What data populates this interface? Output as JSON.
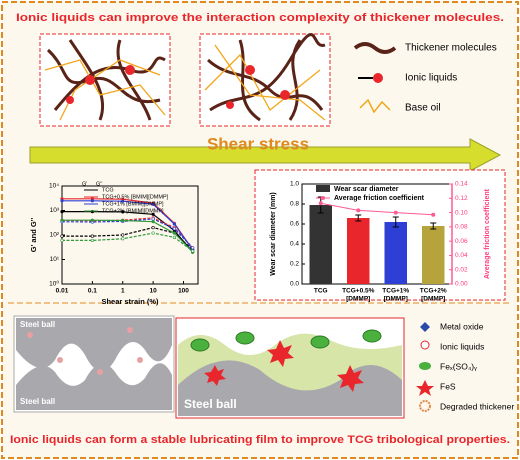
{
  "top_panel": {
    "title": "Ionic liquids can improve the interaction complexity of thickener molecules.",
    "legend": [
      "Thickener molecules",
      "Ionic liquids",
      "Base oil"
    ],
    "arrow_label": "Shear stress"
  },
  "chart_data": [
    {
      "type": "line",
      "x_label": "Shear strain (%)",
      "y_label": "G' and G''",
      "legend_header": [
        "G'",
        "G''"
      ],
      "x": [
        0.01,
        0.1,
        1,
        10,
        50,
        200
      ],
      "xlim": [
        0.01,
        300
      ],
      "xticks": [
        0.01,
        0.1,
        1,
        10,
        100
      ],
      "xlog": true,
      "ylim": [
        1,
        10000
      ],
      "yticks": [
        {
          "value": 1,
          "label": "10⁰"
        },
        {
          "value": 10,
          "label": "10¹"
        },
        {
          "value": 100,
          "label": "10²"
        },
        {
          "value": 1000,
          "label": "10³"
        },
        {
          "value": 10000,
          "label": "10⁴"
        }
      ],
      "ylog": true,
      "series": [
        {
          "name": "TCG",
          "color": "#000000",
          "values": [
            900,
            900,
            880,
            700,
            150,
            20
          ],
          "loss_values": [
            90,
            90,
            100,
            200,
            120,
            25
          ]
        },
        {
          "name": "TCG+0.5% [BMIM][DMMP]",
          "color": "#e8262b",
          "values": [
            3000,
            3000,
            2900,
            2000,
            300,
            25
          ],
          "loss_values": [
            400,
            380,
            400,
            500,
            200,
            30
          ]
        },
        {
          "name": "TCG+1% [BMIM][DMMP]",
          "color": "#2e3fd6",
          "values": [
            2500,
            2500,
            2400,
            1800,
            280,
            25
          ],
          "loss_values": [
            350,
            340,
            360,
            450,
            180,
            30
          ]
        },
        {
          "name": "TCG+2% [BMIM][DMMP]",
          "color": "#2f9a3a",
          "values": [
            400,
            400,
            390,
            350,
            120,
            20
          ],
          "loss_values": [
            60,
            60,
            70,
            120,
            80,
            22
          ]
        }
      ]
    },
    {
      "type": "bar",
      "y_label": "Wear scar diameter (mm)",
      "y2_label": "Average friction coefficient",
      "categories": [
        [
          "TCG"
        ],
        [
          "TCG+0.5%",
          "[DMMP]"
        ],
        [
          "TCG+1%",
          "[DMMP]"
        ],
        [
          "TCG+2%",
          "[DMMP]"
        ]
      ],
      "ylim": [
        0,
        1
      ],
      "yticks": [
        {
          "value": 0,
          "label": "0.0"
        },
        0.2,
        0.4,
        0.6,
        0.8,
        {
          "value": 1,
          "label": "1.0"
        }
      ],
      "y2lim": [
        0,
        0.14
      ],
      "y2ticks": [
        {
          "value": 0,
          "label": "0.00"
        },
        0.02,
        0.04,
        0.06,
        0.08,
        {
          "value": 0.1,
          "label": "0.10"
        },
        0.12,
        0.14
      ],
      "series": [
        {
          "name": "Wear scar diameter",
          "color": "#333333",
          "bar_colors": [
            "#333333",
            "#e8262b",
            "#2e3fd6",
            "#b7a33c"
          ],
          "values": [
            0.79,
            0.66,
            0.62,
            0.58
          ],
          "errors": [
            0.08,
            0.03,
            0.05,
            0.03
          ]
        },
        {
          "name": "Average friction coefficient",
          "color": "#ff5b8f",
          "axis": "y2",
          "values": [
            0.113,
            0.103,
            0.1,
            0.097
          ]
        }
      ]
    }
  ],
  "bottom_panel": {
    "labels": [
      "Steel ball",
      "Steel ball",
      "Steel ball"
    ],
    "legend": [
      "Metal oxide",
      "Ionic liquids",
      "Feₓ(SO₄)ᵧ",
      "FeS",
      "Degraded thickener"
    ],
    "conclusion": "Ionic liquids can form a stable lubricating film to improve TCG tribological properties."
  }
}
